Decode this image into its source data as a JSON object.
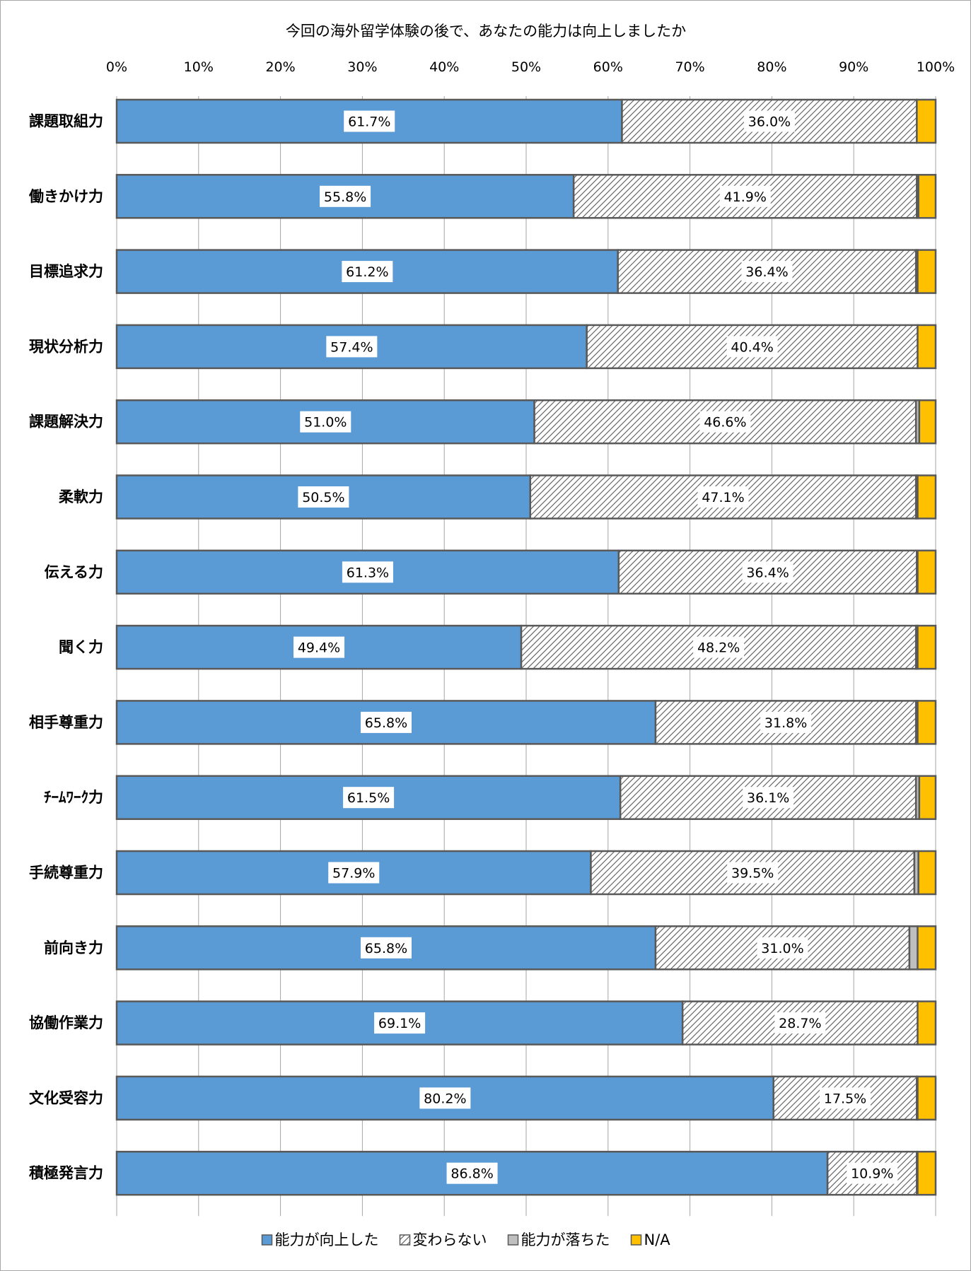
{
  "chart_data": {
    "type": "bar",
    "orientation": "horizontal",
    "stacked": "percent",
    "title": "今回の海外留学体験の後で、あなたの能力は向上しましたか",
    "xlabel": "",
    "ylabel": "",
    "xlim": [
      0,
      100
    ],
    "xticks": [
      "0%",
      "10%",
      "20%",
      "30%",
      "40%",
      "50%",
      "60%",
      "70%",
      "80%",
      "90%",
      "100%"
    ],
    "grid": true,
    "legend_position": "bottom",
    "categories": [
      "課題取組力",
      "働きかけ力",
      "目標追求力",
      "現状分析力",
      "課題解決力",
      "柔軟力",
      "伝える力",
      "聞く力",
      "相手尊重力",
      "ﾁｰﾑﾜｰｸ力",
      "手続尊重力",
      "前向き力",
      "協働作業力",
      "文化受容力",
      "積極発言力"
    ],
    "series": [
      {
        "name": "能力が向上した",
        "color": "#5b9bd5",
        "pattern": "solid",
        "values": [
          61.7,
          55.8,
          61.2,
          57.4,
          51.0,
          50.5,
          61.3,
          49.4,
          65.8,
          61.5,
          57.9,
          65.8,
          69.1,
          80.2,
          86.8
        ],
        "labels": [
          "61.7%",
          "55.8%",
          "61.2%",
          "57.4%",
          "51.0%",
          "50.5%",
          "61.3%",
          "49.4%",
          "65.8%",
          "61.5%",
          "57.9%",
          "65.8%",
          "69.1%",
          "80.2%",
          "86.8%"
        ]
      },
      {
        "name": "変わらない",
        "color": "#808080",
        "pattern": "hatch",
        "values": [
          36.0,
          41.9,
          36.4,
          40.4,
          46.6,
          47.1,
          36.4,
          48.2,
          31.8,
          36.1,
          39.5,
          31.0,
          28.7,
          17.5,
          10.9
        ],
        "labels": [
          "36.0%",
          "41.9%",
          "36.4%",
          "40.4%",
          "46.6%",
          "47.1%",
          "36.4%",
          "48.2%",
          "31.8%",
          "36.1%",
          "39.5%",
          "31.0%",
          "28.7%",
          "17.5%",
          "10.9%"
        ]
      },
      {
        "name": "能力が落ちた",
        "color": "#bfbfbf",
        "pattern": "solid",
        "values": [
          0.0,
          0.2,
          0.2,
          0.0,
          0.4,
          0.2,
          0.1,
          0.2,
          0.2,
          0.4,
          0.5,
          1.0,
          0.0,
          0.1,
          0.1
        ],
        "labels": []
      },
      {
        "name": "N/A",
        "color": "#ffc000",
        "pattern": "solid",
        "values": [
          2.3,
          2.1,
          2.2,
          2.2,
          2.0,
          2.2,
          2.2,
          2.2,
          2.2,
          2.0,
          2.1,
          2.2,
          2.2,
          2.2,
          2.2
        ],
        "labels": []
      }
    ]
  }
}
